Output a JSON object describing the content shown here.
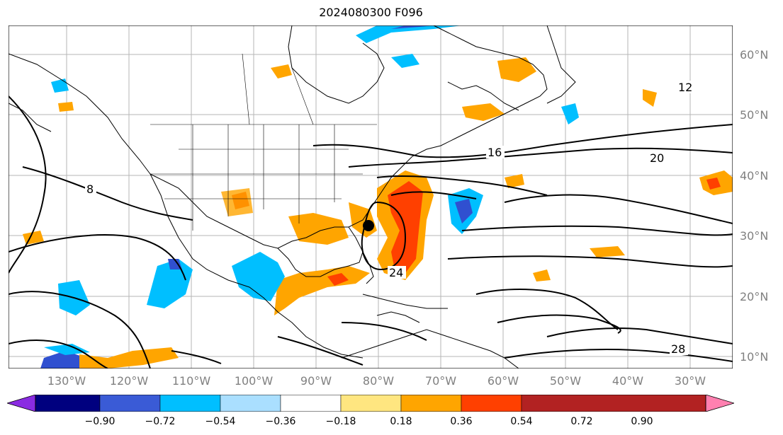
{
  "title": "2024080300 F096",
  "map": {
    "lat_labels": [
      "60°N",
      "50°N",
      "40°N",
      "30°N",
      "20°N",
      "10°N"
    ],
    "lon_labels": [
      "130°W",
      "120°W",
      "110°W",
      "100°W",
      "90°W",
      "80°W",
      "70°W",
      "60°W",
      "50°W",
      "40°W",
      "30°W"
    ],
    "contour_labels": [
      "12",
      "16",
      "20",
      "24",
      "28",
      "8"
    ],
    "colors": {
      "land_outline": "#000000",
      "grid": "#aaaaaa",
      "orange": "#ffa500",
      "red_orange": "#ff4000",
      "cyan": "#00bfff",
      "blue": "#3050d0"
    }
  },
  "colorbar": {
    "ticks": [
      "−0.90",
      "−0.72",
      "−0.54",
      "−0.36",
      "−0.18",
      "0.18",
      "0.36",
      "0.54",
      "0.72",
      "0.90"
    ],
    "bins": [
      "#8a2be2",
      "#00007f",
      "#3a5bd6",
      "#00bfff",
      "#aadfff",
      "#ffffff",
      "#ffe680",
      "#ffa500",
      "#ff4000",
      "#b22222",
      "#ff80b0"
    ]
  }
}
